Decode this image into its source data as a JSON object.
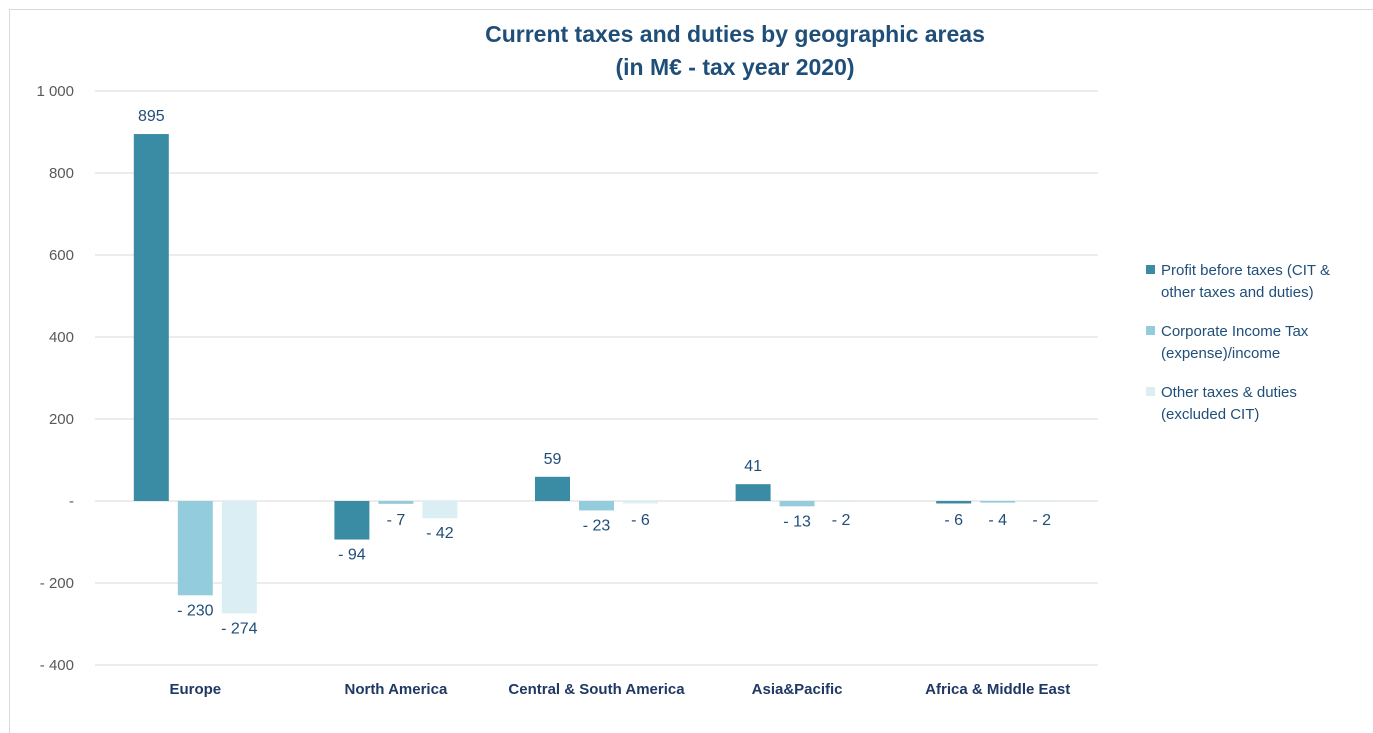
{
  "chart_data": {
    "type": "bar",
    "title_lines": [
      "Current taxes and duties by geographic areas",
      "(in M€ - tax year 2020)"
    ],
    "categories": [
      "Europe",
      "North America",
      "Central & South America",
      "Asia&Pacific",
      "Africa & Middle East"
    ],
    "series": [
      {
        "name_lines": [
          "Profit before taxes (CIT &",
          "other taxes and duties)"
        ],
        "color": "#3a8ba4",
        "values": [
          895,
          -94,
          59,
          41,
          -6
        ],
        "labels": [
          "895",
          "- 94",
          "59",
          "41",
          "- 6"
        ]
      },
      {
        "name_lines": [
          "Corporate Income Tax",
          "(expense)/income"
        ],
        "color": "#93cddd",
        "values": [
          -230,
          -7,
          -23,
          -13,
          -4
        ],
        "labels": [
          "- 230",
          "- 7",
          "- 23",
          "- 13",
          "- 4"
        ]
      },
      {
        "name_lines": [
          "Other taxes & duties",
          "(excluded CIT)"
        ],
        "color": "#daeef3",
        "values": [
          -274,
          -42,
          -6,
          -2,
          -2
        ],
        "labels": [
          "- 274",
          "- 42",
          "- 6",
          "- 2",
          "- 2"
        ]
      }
    ],
    "y_ticks": [
      {
        "value": 1000,
        "label": "1 000"
      },
      {
        "value": 800,
        "label": "800"
      },
      {
        "value": 600,
        "label": "600"
      },
      {
        "value": 400,
        "label": "400"
      },
      {
        "value": 200,
        "label": "200"
      },
      {
        "value": 0,
        "label": "-"
      },
      {
        "value": -200,
        "label": "- 200"
      },
      {
        "value": -400,
        "label": "- 400"
      }
    ],
    "ylim": [
      -400,
      1000
    ],
    "grid": true,
    "legend_position": "right",
    "xlabel": "",
    "ylabel": ""
  }
}
